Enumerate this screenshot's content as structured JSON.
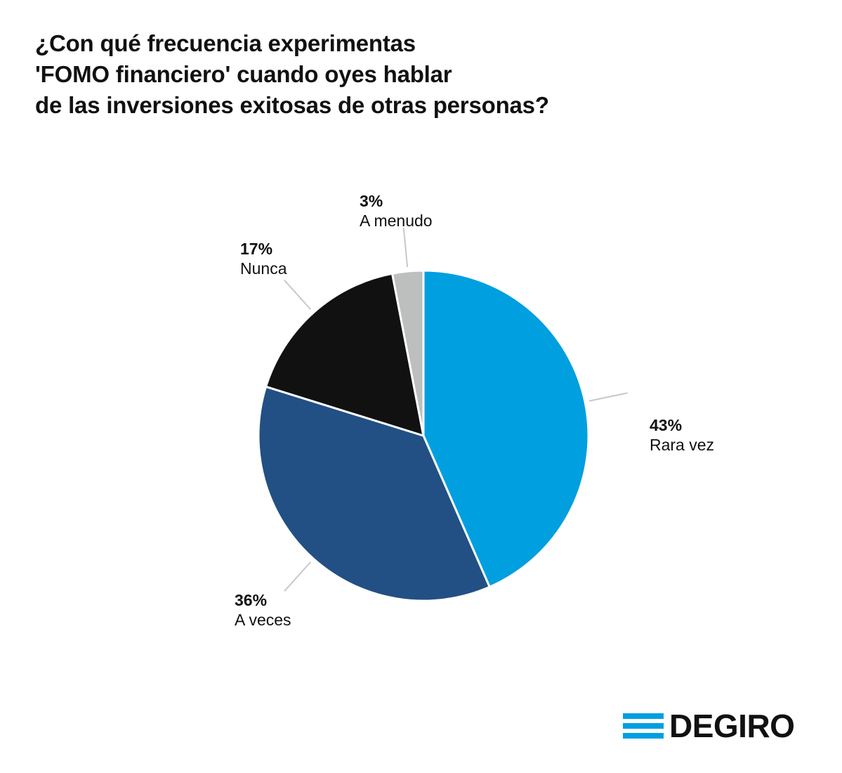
{
  "title_lines": [
    "¿Con qué frecuencia experimentas",
    "'FOMO financiero' cuando oyes hablar",
    "de las inversiones exitosas de otras personas?"
  ],
  "chart_data": {
    "type": "pie",
    "title": "¿Con qué frecuencia experimentas 'FOMO financiero' cuando oyes hablar de las inversiones exitosas de otras personas?",
    "slices": [
      {
        "label": "Rara vez",
        "value": 43,
        "value_label": "43%",
        "color": "#009fe0"
      },
      {
        "label": "A veces",
        "value": 36,
        "value_label": "36%",
        "color": "#225084"
      },
      {
        "label": "Nunca",
        "value": 17,
        "value_label": "17%",
        "color": "#111111"
      },
      {
        "label": "A menudo",
        "value": 3,
        "value_label": "3%",
        "color": "#bdbfbf"
      }
    ],
    "start": "top",
    "direction": "clockwise"
  },
  "logo": {
    "text": "DEGIRO",
    "colors": [
      "#009fe0",
      "#009fe0",
      "#009fe0"
    ]
  }
}
